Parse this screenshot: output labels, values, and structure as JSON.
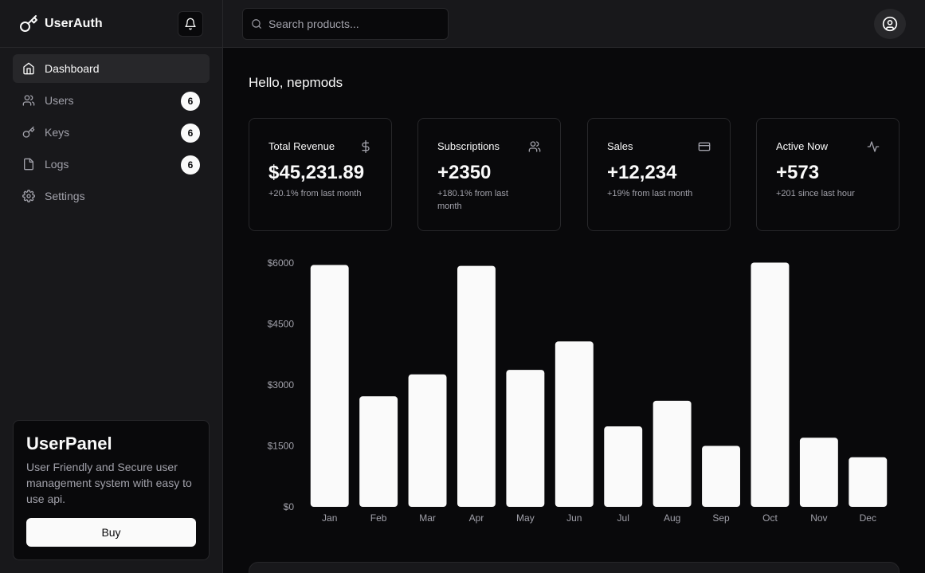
{
  "brand": {
    "name": "UserAuth"
  },
  "sidebar": {
    "items": [
      {
        "label": "Dashboard",
        "icon": "home-icon",
        "active": true
      },
      {
        "label": "Users",
        "icon": "users-icon",
        "badge": "6"
      },
      {
        "label": "Keys",
        "icon": "key-icon",
        "badge": "6"
      },
      {
        "label": "Logs",
        "icon": "file-icon",
        "badge": "6"
      },
      {
        "label": "Settings",
        "icon": "gear-icon"
      }
    ],
    "promo": {
      "title": "UserPanel",
      "description": "User Friendly and Secure user management system with easy to use api.",
      "button": "Buy"
    }
  },
  "header": {
    "search_placeholder": "Search products..."
  },
  "main": {
    "greeting": "Hello, nepmods",
    "cards": [
      {
        "title": "Total Revenue",
        "value": "$45,231.89",
        "sub": "+20.1% from last month",
        "icon": "dollar-icon"
      },
      {
        "title": "Subscriptions",
        "value": "+2350",
        "sub": "+180.1% from last month",
        "icon": "users-icon"
      },
      {
        "title": "Sales",
        "value": "+12,234",
        "sub": "+19% from last month",
        "icon": "credit-card-icon"
      },
      {
        "title": "Active Now",
        "value": "+573",
        "sub": "+201 since last hour",
        "icon": "activity-icon"
      }
    ]
  },
  "colors": {
    "background": "#09090b",
    "panel": "#18181b",
    "border": "#27272a",
    "bar": "#fafafa",
    "muted_text": "#a1a1aa"
  },
  "chart_data": {
    "type": "bar",
    "categories": [
      "Jan",
      "Feb",
      "Mar",
      "Apr",
      "May",
      "Jun",
      "Jul",
      "Aug",
      "Sep",
      "Oct",
      "Nov",
      "Dec"
    ],
    "values": [
      5950,
      2720,
      3260,
      5930,
      3370,
      4070,
      1980,
      2610,
      1500,
      6010,
      1700,
      1220
    ],
    "yticks": [
      "$0",
      "$1500",
      "$3000",
      "$4500",
      "$6000"
    ],
    "ylim": [
      0,
      6000
    ],
    "grid": false,
    "legend": "none"
  }
}
